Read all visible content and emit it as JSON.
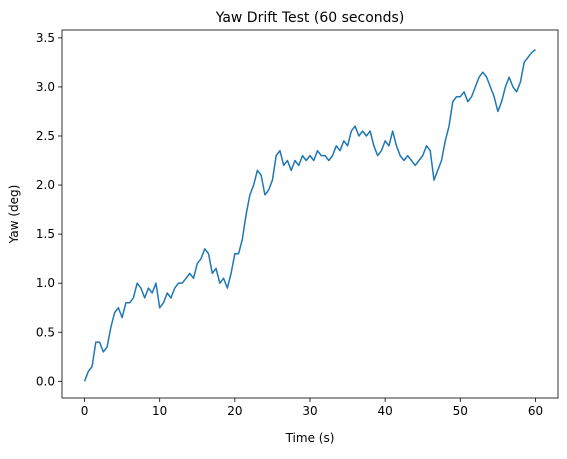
{
  "chart_data": {
    "type": "line",
    "title": "Yaw Drift Test (60 seconds)",
    "xlabel": "Time (s)",
    "ylabel": "Yaw (deg)",
    "x": [
      0,
      0.5,
      1,
      1.5,
      2,
      2.5,
      3,
      3.5,
      4,
      4.5,
      5,
      5.5,
      6,
      6.5,
      7,
      7.5,
      8,
      8.5,
      9,
      9.5,
      10,
      10.5,
      11,
      11.5,
      12,
      12.5,
      13,
      13.5,
      14,
      14.5,
      15,
      15.5,
      16,
      16.5,
      17,
      17.5,
      18,
      18.5,
      19,
      19.5,
      20,
      20.5,
      21,
      21.5,
      22,
      22.5,
      23,
      23.5,
      24,
      24.5,
      25,
      25.5,
      26,
      26.5,
      27,
      27.5,
      28,
      28.5,
      29,
      29.5,
      30,
      30.5,
      31,
      31.5,
      32,
      32.5,
      33,
      33.5,
      34,
      34.5,
      35,
      35.5,
      36,
      36.5,
      37,
      37.5,
      38,
      38.5,
      39,
      39.5,
      40,
      40.5,
      41,
      41.5,
      42,
      42.5,
      43,
      43.5,
      44,
      44.5,
      45,
      45.5,
      46,
      46.5,
      47,
      47.5,
      48,
      48.5,
      49,
      49.5,
      50,
      50.5,
      51,
      51.5,
      52,
      52.5,
      53,
      53.5,
      54,
      54.5,
      55,
      55.5,
      56,
      56.5,
      57,
      57.5,
      58,
      58.5,
      59,
      59.5,
      60
    ],
    "series": [
      {
        "name": "Yaw",
        "color": "#1f77b4",
        "values": [
          0.0,
          0.1,
          0.15,
          0.4,
          0.4,
          0.3,
          0.35,
          0.55,
          0.7,
          0.75,
          0.65,
          0.8,
          0.8,
          0.85,
          1.0,
          0.95,
          0.85,
          0.95,
          0.9,
          1.0,
          0.75,
          0.8,
          0.9,
          0.85,
          0.95,
          1.0,
          1.0,
          1.05,
          1.1,
          1.05,
          1.2,
          1.25,
          1.35,
          1.3,
          1.1,
          1.15,
          1.0,
          1.05,
          0.95,
          1.1,
          1.3,
          1.3,
          1.45,
          1.7,
          1.9,
          2.0,
          2.15,
          2.1,
          1.9,
          1.95,
          2.05,
          2.3,
          2.35,
          2.2,
          2.25,
          2.15,
          2.25,
          2.2,
          2.3,
          2.25,
          2.3,
          2.25,
          2.35,
          2.3,
          2.3,
          2.25,
          2.3,
          2.4,
          2.35,
          2.45,
          2.4,
          2.55,
          2.6,
          2.5,
          2.55,
          2.5,
          2.55,
          2.4,
          2.3,
          2.35,
          2.45,
          2.4,
          2.55,
          2.4,
          2.3,
          2.25,
          2.3,
          2.25,
          2.2,
          2.25,
          2.3,
          2.4,
          2.35,
          2.05,
          2.15,
          2.25,
          2.45,
          2.6,
          2.85,
          2.9,
          2.9,
          2.95,
          2.85,
          2.9,
          3.0,
          3.1,
          3.15,
          3.1,
          3.0,
          2.9,
          2.75,
          2.85,
          3.0,
          3.1,
          3.0,
          2.95,
          3.05,
          3.25,
          3.3,
          3.35,
          3.38
        ]
      }
    ],
    "xlim": [
      -3,
      63
    ],
    "xticks": [
      0,
      10,
      20,
      30,
      40,
      50,
      60
    ],
    "ylim": [
      -0.17,
      3.58
    ],
    "yticks": [
      {
        "value": 0,
        "label": "0.0"
      },
      0.5,
      {
        "value": 1,
        "label": "1.0"
      },
      1.5,
      {
        "value": 2,
        "label": "2.0"
      },
      2.5,
      {
        "value": 3,
        "label": "3.0"
      },
      3.5
    ]
  }
}
